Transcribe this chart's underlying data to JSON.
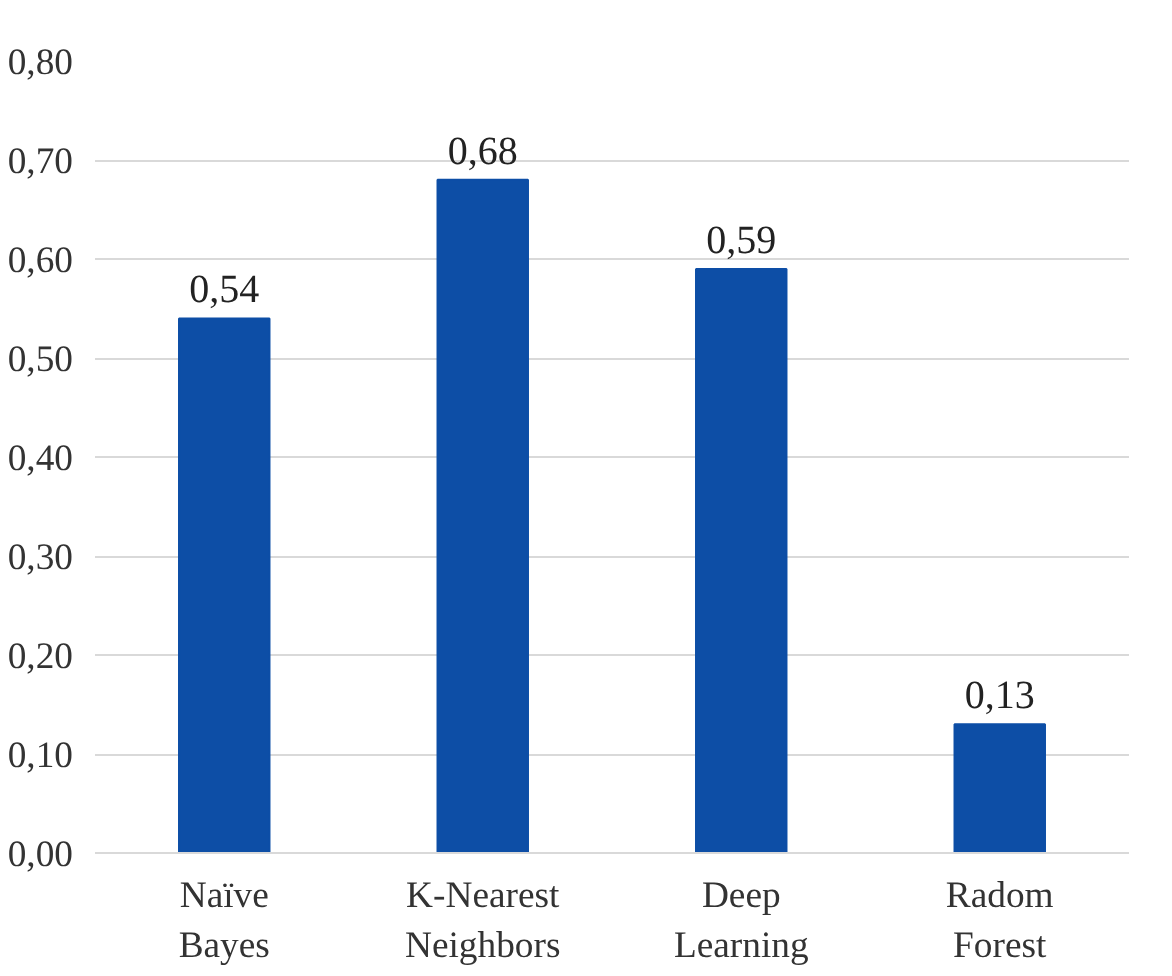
{
  "chart_data": {
    "type": "bar",
    "categories": [
      "Naïve Bayes",
      "K-Nearest Neighbors",
      "Deep Learning",
      "Radom Forest"
    ],
    "values": [
      0.54,
      0.68,
      0.59,
      0.13
    ],
    "color": "#0d4ea6",
    "data_labels": true,
    "value_labels": [
      "0,54",
      "0,68",
      "0,59",
      "0,13"
    ],
    "ylim": [
      0,
      0.8
    ],
    "yticks": [
      {
        "value": 0,
        "label": "0,00"
      },
      {
        "value": 0.1,
        "label": "0,10"
      },
      {
        "value": 0.2,
        "label": "0,20"
      },
      {
        "value": 0.3,
        "label": "0,30"
      },
      {
        "value": 0.4,
        "label": "0,40"
      },
      {
        "value": 0.5,
        "label": "0,50"
      },
      {
        "value": 0.6,
        "label": "0,60"
      },
      {
        "value": 0.7,
        "label": "0,70"
      },
      {
        "value": 0.8,
        "label": "0,80"
      }
    ],
    "grid": "y"
  }
}
